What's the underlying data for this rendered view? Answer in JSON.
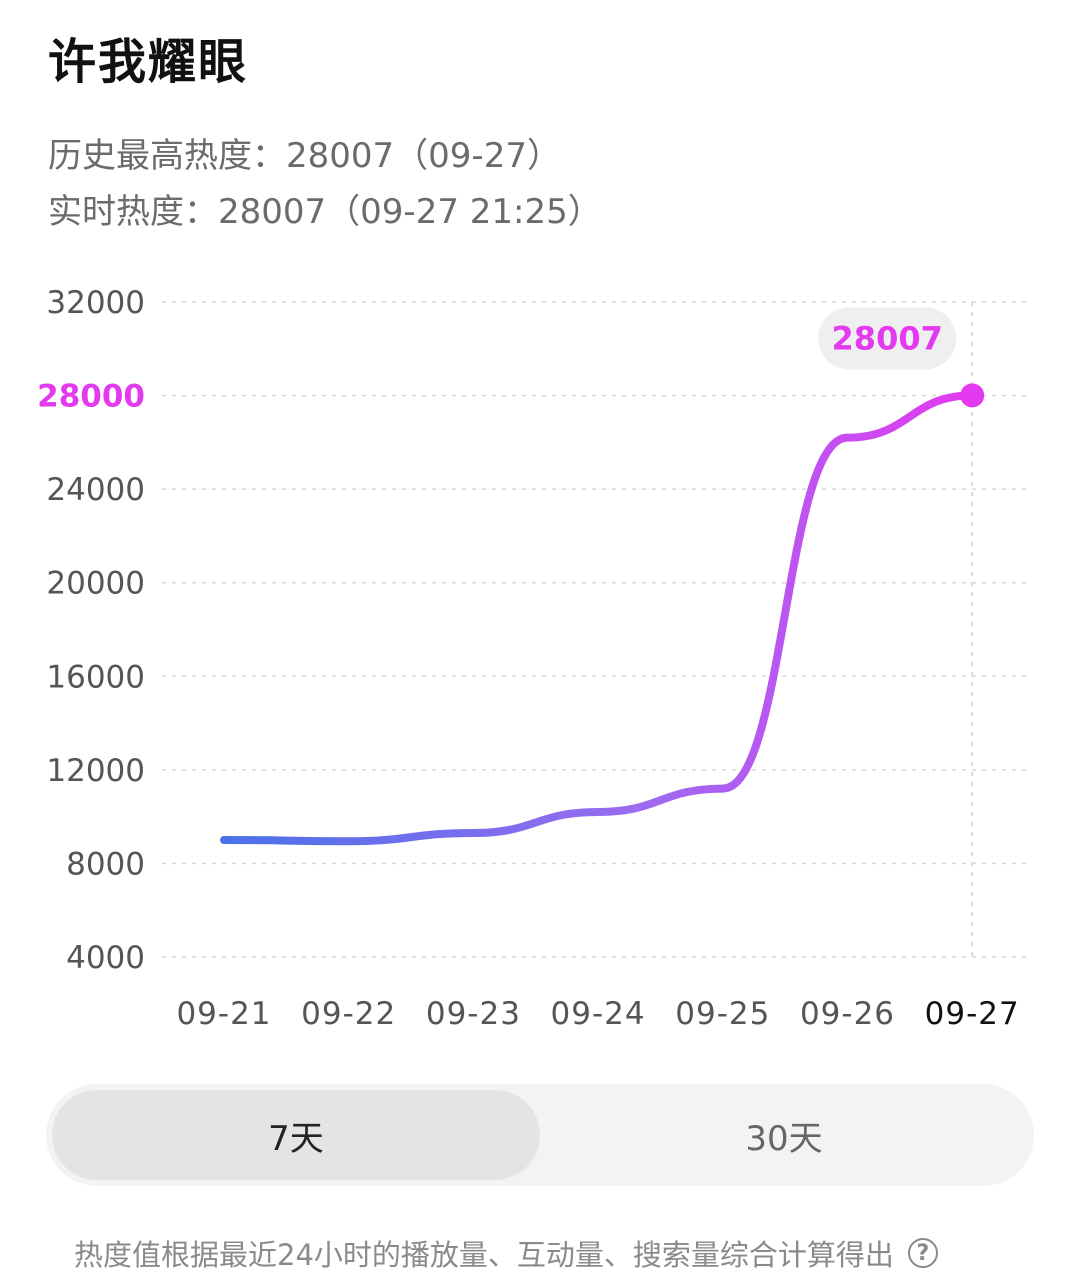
{
  "header": {
    "title": "许我耀眼",
    "peak_heat": "历史最高热度：28007（09-27）",
    "realtime_heat": "实时热度：28007（09-27 21:25）"
  },
  "chart_data": {
    "type": "line",
    "x": [
      "09-21",
      "09-22",
      "09-23",
      "09-24",
      "09-25",
      "09-26",
      "09-27"
    ],
    "series": [
      {
        "values": [
          9000,
          8950,
          9300,
          10200,
          11200,
          26200,
          28007
        ]
      }
    ],
    "y_ticks": [
      "32000",
      "28000",
      "24000",
      "20000",
      "16000",
      "12000",
      "8000",
      "4000"
    ],
    "ylim": [
      4000,
      32000
    ],
    "highlight_tick": "28000",
    "tooltip": {
      "value": "28007"
    },
    "grid": true,
    "colors": {
      "line_start": "#4a72e8",
      "line_end": "#e33af0",
      "accent": "#e33af0"
    }
  },
  "range_toggle": {
    "options": [
      "7天",
      "30天"
    ],
    "selected": "7天"
  },
  "footnote": {
    "text": "热度值根据最近24小时的播放量、互动量、搜索量综合计算得出"
  }
}
